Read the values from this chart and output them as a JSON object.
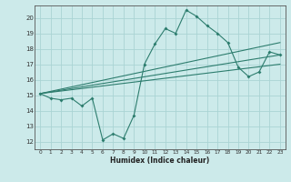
{
  "xlabel": "Humidex (Indice chaleur)",
  "bg_color": "#cceaea",
  "grid_color": "#aad4d4",
  "line_color": "#2d7d6e",
  "xlim": [
    -0.5,
    23.5
  ],
  "ylim": [
    11.5,
    20.8
  ],
  "xticks": [
    0,
    1,
    2,
    3,
    4,
    5,
    6,
    7,
    8,
    9,
    10,
    11,
    12,
    13,
    14,
    15,
    16,
    17,
    18,
    19,
    20,
    21,
    22,
    23
  ],
  "yticks": [
    12,
    13,
    14,
    15,
    16,
    17,
    18,
    19,
    20
  ],
  "series_main": {
    "x": [
      0,
      1,
      2,
      3,
      4,
      5,
      6,
      7,
      8,
      9,
      10,
      11,
      12,
      13,
      14,
      15,
      16,
      17,
      18,
      19,
      20,
      21,
      22,
      23
    ],
    "y": [
      15.1,
      14.8,
      14.7,
      14.8,
      14.3,
      14.8,
      12.1,
      12.5,
      12.2,
      13.7,
      17.0,
      18.3,
      19.3,
      19.0,
      20.5,
      20.1,
      19.5,
      19.0,
      18.4,
      16.8,
      16.2,
      16.5,
      17.8,
      17.6
    ]
  },
  "series_lines": [
    {
      "x": [
        0,
        23
      ],
      "y": [
        15.1,
        18.4
      ]
    },
    {
      "x": [
        0,
        23
      ],
      "y": [
        15.1,
        17.6
      ]
    },
    {
      "x": [
        0,
        23
      ],
      "y": [
        15.1,
        17.0
      ]
    }
  ]
}
